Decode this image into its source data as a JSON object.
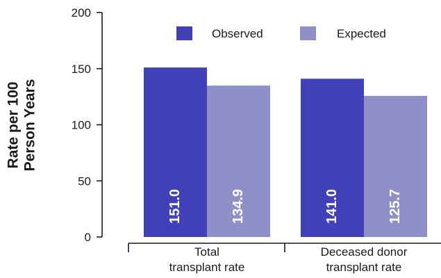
{
  "chart_data": {
    "type": "bar",
    "categories": [
      [
        "Total",
        "transplant rate"
      ],
      [
        "Deceased donor",
        "transplant rate"
      ]
    ],
    "series": [
      {
        "name": "Observed",
        "values": [
          151.0,
          141.0
        ],
        "labels": [
          "151.0",
          "141.0"
        ],
        "color": "#4040b8"
      },
      {
        "name": "Expected",
        "values": [
          134.9,
          125.7
        ],
        "labels": [
          "134.9",
          "125.7"
        ],
        "color": "#9090c8"
      }
    ],
    "ylabel": [
      "Rate per 100",
      "Person Years"
    ],
    "ylim": [
      0,
      200
    ],
    "yticks": [
      0,
      50,
      100,
      150,
      200
    ],
    "legend_position": "top-right",
    "grid": false
  }
}
